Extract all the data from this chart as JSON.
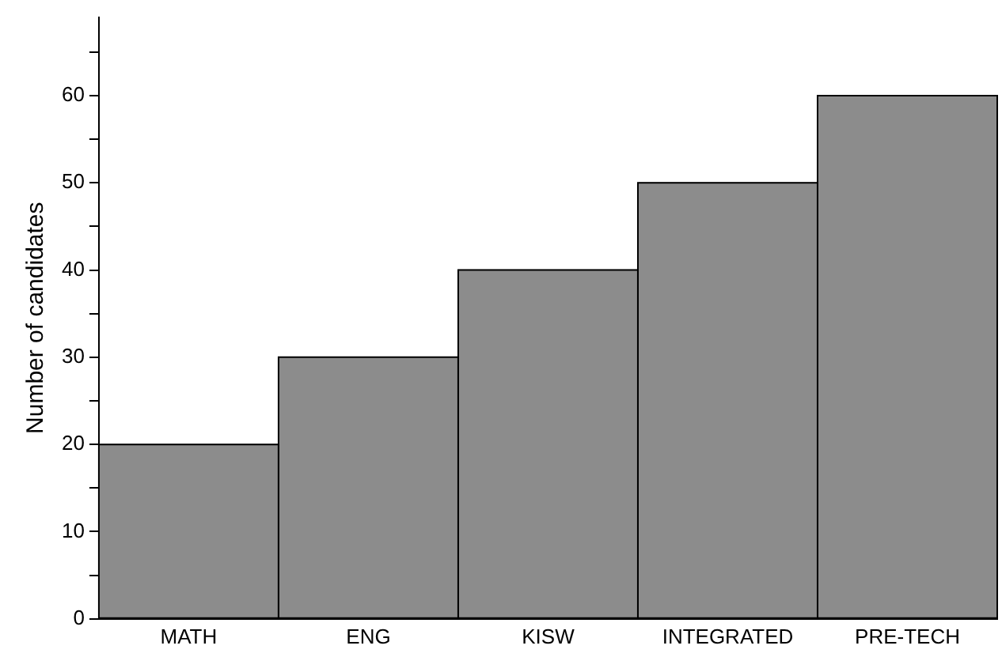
{
  "chart_data": {
    "type": "bar",
    "ylabel": "Number of candidates",
    "categories": [
      "MATH",
      "ENG",
      "KISW",
      "INTEGRATED",
      "PRE-TECH"
    ],
    "values": [
      20,
      30,
      40,
      50,
      60
    ],
    "color": "#8c8c8c",
    "ylim": [
      0,
      69
    ],
    "yticks": [
      0,
      {
        "value": 5,
        "label": null
      },
      10,
      {
        "value": 15,
        "label": null
      },
      20,
      {
        "value": 25,
        "label": null
      },
      30,
      {
        "value": 35,
        "label": null
      },
      40,
      {
        "value": 45,
        "label": null
      },
      50,
      {
        "value": 55,
        "label": null
      },
      60,
      {
        "value": 65,
        "label": null
      }
    ],
    "grid": false,
    "legend": false
  }
}
